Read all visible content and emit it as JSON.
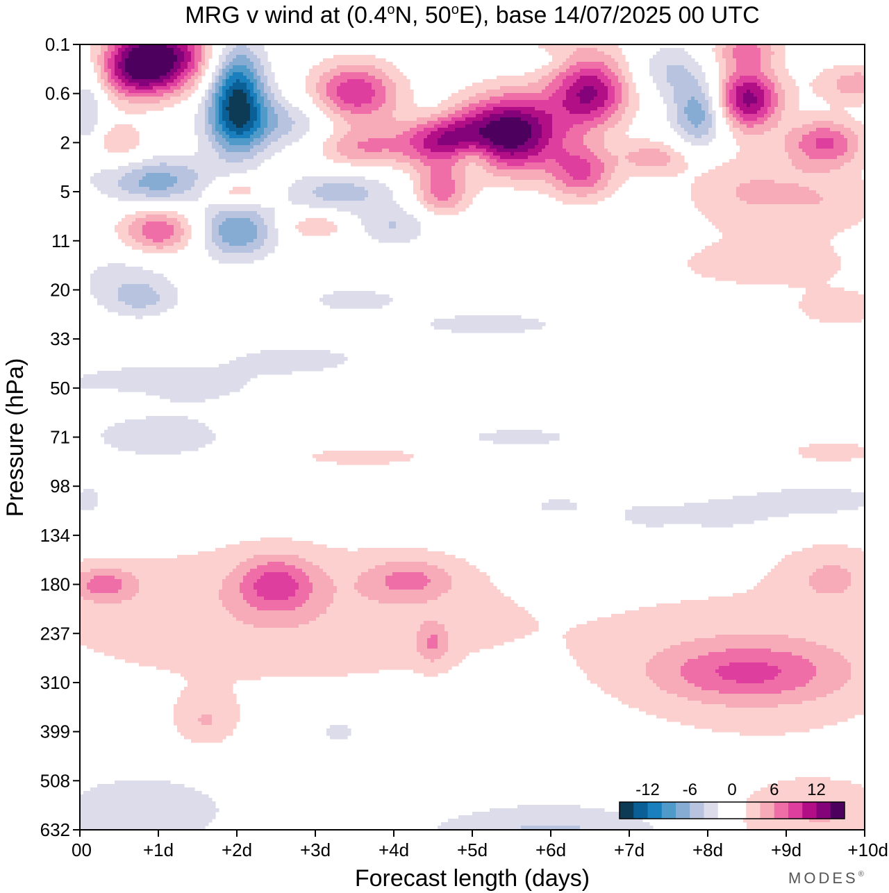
{
  "chart_data": {
    "type": "heatmap",
    "title": "MRG v wind at (0.4°N, 50°E),  base 14/07/2025  00 UTC",
    "title_parts": {
      "t1": "MRG v wind at (0.4",
      "sup1": "o",
      "t2": "N, 50",
      "sup2": "o",
      "t3": "E),  base 14/07/2025  00 UTC"
    },
    "xlabel": "Forecast length (days)",
    "ylabel": "Pressure (hPa)",
    "xlim": [
      0,
      10
    ],
    "y_levels": [
      0.1,
      0.6,
      2,
      5,
      11,
      20,
      33,
      50,
      71,
      98,
      134,
      180,
      237,
      310,
      399,
      508,
      632
    ],
    "x_ticks": [
      {
        "v": 0,
        "label": "00"
      },
      {
        "v": 1,
        "label": "+1d"
      },
      {
        "v": 2,
        "label": "+2d"
      },
      {
        "v": 3,
        "label": "+3d"
      },
      {
        "v": 4,
        "label": "+4d"
      },
      {
        "v": 5,
        "label": "+5d"
      },
      {
        "v": 6,
        "label": "+6d"
      },
      {
        "v": 7,
        "label": "+7d"
      },
      {
        "v": 8,
        "label": "+8d"
      },
      {
        "v": 9,
        "label": "+9d"
      },
      {
        "v": 10,
        "label": "+10d"
      }
    ],
    "y_ticks": [
      {
        "level": 0,
        "label": "0.1"
      },
      {
        "level": 1,
        "label": "0.6"
      },
      {
        "level": 2,
        "label": "2"
      },
      {
        "level": 3,
        "label": "5"
      },
      {
        "level": 4,
        "label": "11"
      },
      {
        "level": 5,
        "label": "20"
      },
      {
        "level": 6,
        "label": "33"
      },
      {
        "level": 7,
        "label": "50"
      },
      {
        "level": 8,
        "label": "71"
      },
      {
        "level": 9,
        "label": "98"
      },
      {
        "level": 10,
        "label": "134"
      },
      {
        "level": 11,
        "label": "180"
      },
      {
        "level": 12,
        "label": "237"
      },
      {
        "level": 13,
        "label": "310"
      },
      {
        "level": 14,
        "label": "399"
      },
      {
        "level": 15,
        "label": "508"
      },
      {
        "level": 16,
        "label": "632"
      }
    ],
    "colorbar": {
      "colors": [
        "#0d3b55",
        "#0a5f96",
        "#1a7fbd",
        "#4f9ac9",
        "#86acd4",
        "#b8c4df",
        "#dcdcea",
        "#ffffff",
        "#ffffff",
        "#fbd0cf",
        "#f7aab8",
        "#f06ea8",
        "#de3e9e",
        "#b20f86",
        "#85037a",
        "#4d005e"
      ],
      "tick_labels": [
        {
          "pos": 2,
          "label": "-12"
        },
        {
          "pos": 5,
          "label": "-6"
        },
        {
          "pos": 8,
          "label": "0"
        },
        {
          "pos": 11,
          "label": "6"
        },
        {
          "pos": 14,
          "label": "12"
        }
      ]
    },
    "features": [
      {
        "name": "strat-pos-core-1",
        "x": 1.0,
        "level": 0.25,
        "v": 15,
        "sx": 0.45,
        "sy": 0.5
      },
      {
        "name": "strat-pos-1b",
        "x": 0.7,
        "level": 0.6,
        "v": 6,
        "sx": 0.3,
        "sy": 0.4
      },
      {
        "name": "strat-neg-core-2",
        "x": 2.0,
        "level": 1.1,
        "v": -14,
        "sx": 0.25,
        "sy": 0.75
      },
      {
        "name": "strat-neg-2b",
        "x": 2.5,
        "level": 1.6,
        "v": -5,
        "sx": 0.6,
        "sy": 0.4
      },
      {
        "name": "strat-neg-2c",
        "x": 1.0,
        "level": 2.8,
        "v": -7,
        "sx": 0.5,
        "sy": 0.35
      },
      {
        "name": "strat-pos-3.5",
        "x": 3.5,
        "level": 1.0,
        "v": 10,
        "sx": 0.4,
        "sy": 0.45
      },
      {
        "name": "strat-pos-3.5b",
        "x": 3.6,
        "level": 2.1,
        "v": 6,
        "sx": 0.45,
        "sy": 0.3
      },
      {
        "name": "strat-pos-4.6",
        "x": 4.6,
        "level": 1.9,
        "v": 11,
        "sx": 0.35,
        "sy": 0.4
      },
      {
        "name": "strat-pos-4.6b",
        "x": 4.6,
        "level": 3.0,
        "v": 7,
        "sx": 0.25,
        "sy": 0.35
      },
      {
        "name": "strat-pos-core-5.5",
        "x": 5.5,
        "level": 1.8,
        "v": 16,
        "sx": 0.45,
        "sy": 0.55
      },
      {
        "name": "strat-pos-6.5",
        "x": 6.5,
        "level": 1.0,
        "v": 12,
        "sx": 0.35,
        "sy": 0.5
      },
      {
        "name": "strat-pos-6.4b",
        "x": 6.4,
        "level": 2.6,
        "v": 8,
        "sx": 0.3,
        "sy": 0.4
      },
      {
        "name": "strat-pos-6.0c",
        "x": 6.0,
        "level": 0.2,
        "v": 4,
        "sx": 0.6,
        "sy": 0.3
      },
      {
        "name": "strat-neg-7.9",
        "x": 7.9,
        "level": 1.4,
        "v": -8,
        "sx": 0.25,
        "sy": 0.5
      },
      {
        "name": "strat-neg-7.5b",
        "x": 7.5,
        "level": 0.5,
        "v": -4,
        "sx": 0.3,
        "sy": 0.4
      },
      {
        "name": "strat-pos-8.5",
        "x": 8.5,
        "level": 1.1,
        "v": 13,
        "sx": 0.3,
        "sy": 0.45
      },
      {
        "name": "strat-pos-9.5",
        "x": 9.5,
        "level": 2.0,
        "v": 8,
        "sx": 0.35,
        "sy": 0.35
      },
      {
        "name": "strat-pos-9.8",
        "x": 9.9,
        "level": 0.8,
        "v": 5,
        "sx": 0.4,
        "sy": 0.3
      },
      {
        "name": "strat-pos-8.5top",
        "x": 8.5,
        "level": 0.1,
        "v": 6,
        "sx": 0.3,
        "sy": 0.25
      },
      {
        "name": "strat-pos-7.3",
        "x": 7.3,
        "level": 2.3,
        "v": 5,
        "sx": 0.3,
        "sy": 0.25
      },
      {
        "name": "strat-pos-0.5",
        "x": 0.5,
        "level": 2.0,
        "v": 4,
        "sx": 0.25,
        "sy": 0.3
      },
      {
        "name": "strat-neg-0.1",
        "x": 0.1,
        "level": 1.3,
        "v": -4,
        "sx": 0.15,
        "sy": 0.7
      },
      {
        "name": "strat-neg-5.6",
        "x": 5.8,
        "level": 0.3,
        "v": -4,
        "sx": 0.5,
        "sy": 0.2
      },
      {
        "name": "strat-neg-3.3",
        "x": 3.3,
        "level": 3.0,
        "v": -5,
        "sx": 0.5,
        "sy": 0.3
      },
      {
        "name": "strat-neg-4.5",
        "x": 4.5,
        "level": 1.5,
        "v": -3,
        "sx": 0.25,
        "sy": 0.3
      },
      {
        "name": "strat-neg-5.0",
        "x": 5.0,
        "level": 2.3,
        "v": -4,
        "sx": 0.2,
        "sy": 0.25
      },
      {
        "name": "strat-pos-8.5low",
        "x": 8.5,
        "level": 3.0,
        "v": 4,
        "sx": 0.6,
        "sy": 0.6
      },
      {
        "name": "strat-pos-9.5low",
        "x": 9.6,
        "level": 3.2,
        "v": 3,
        "sx": 0.5,
        "sy": 0.5
      },
      {
        "name": "mid-pos-1.0",
        "x": 1.0,
        "level": 3.8,
        "v": 8,
        "sx": 0.35,
        "sy": 0.35
      },
      {
        "name": "mid-neg-2.0",
        "x": 2.0,
        "level": 3.8,
        "v": -8,
        "sx": 0.35,
        "sy": 0.4
      },
      {
        "name": "mid-pos-2.0",
        "x": 2.0,
        "level": 3.0,
        "v": 5,
        "sx": 0.3,
        "sy": 0.2
      },
      {
        "name": "mid-pos-3.0",
        "x": 3.0,
        "level": 3.7,
        "v": 4,
        "sx": 0.3,
        "sy": 0.2
      },
      {
        "name": "mid-neg-4.0",
        "x": 4.0,
        "level": 3.7,
        "v": -4,
        "sx": 0.35,
        "sy": 0.3
      },
      {
        "name": "mid-neg-1.2",
        "x": 0.6,
        "level": 4.8,
        "v": -3,
        "sx": 0.5,
        "sy": 0.5
      },
      {
        "name": "mid-pos-8.5",
        "x": 8.7,
        "level": 4.5,
        "v": 3,
        "sx": 1.0,
        "sy": 0.4
      },
      {
        "name": "mid-pos-9.5",
        "x": 9.7,
        "level": 5.4,
        "v": 3,
        "sx": 0.5,
        "sy": 0.3
      },
      {
        "name": "mid-neg-3.5",
        "x": 3.5,
        "level": 5.2,
        "v": -3,
        "sx": 0.5,
        "sy": 0.2
      },
      {
        "name": "mid-neg-0.8",
        "x": 0.8,
        "level": 5.2,
        "v": -3,
        "sx": 0.3,
        "sy": 0.25
      },
      {
        "name": "mid-neg-5.2",
        "x": 5.2,
        "level": 5.7,
        "v": -3,
        "sx": 0.8,
        "sy": 0.2
      },
      {
        "name": "mid-neg-3.0b",
        "x": 2.8,
        "level": 6.4,
        "v": -3,
        "sx": 0.6,
        "sy": 0.2
      },
      {
        "name": "mid-neg-0.8b",
        "x": 1.0,
        "level": 6.9,
        "v": -3,
        "sx": 1.2,
        "sy": 0.35
      },
      {
        "name": "mid-pos-0.4",
        "x": 0.5,
        "level": 7.3,
        "v": 3,
        "sx": 0.3,
        "sy": 0.15
      },
      {
        "name": "mid-neg-1.0c",
        "x": 1.0,
        "level": 8.0,
        "v": -3,
        "sx": 0.8,
        "sy": 0.4
      },
      {
        "name": "mid-neg-5.5c",
        "x": 5.6,
        "level": 8.0,
        "v": -3,
        "sx": 0.6,
        "sy": 0.15
      },
      {
        "name": "mid-pos-3.5c",
        "x": 3.6,
        "level": 8.4,
        "v": 3,
        "sx": 0.7,
        "sy": 0.15
      },
      {
        "name": "mid-pos-9.8c",
        "x": 9.6,
        "level": 8.3,
        "v": 3,
        "sx": 0.5,
        "sy": 0.2
      },
      {
        "name": "mid-neg-9.5d",
        "x": 9.4,
        "level": 9.3,
        "v": -3,
        "sx": 0.8,
        "sy": 0.3
      },
      {
        "name": "mid-neg-7.2d",
        "x": 7.2,
        "level": 9.6,
        "v": -3,
        "sx": 0.3,
        "sy": 0.2
      },
      {
        "name": "mid-neg-8.1d",
        "x": 8.1,
        "level": 9.6,
        "v": -3,
        "sx": 0.5,
        "sy": 0.25
      },
      {
        "name": "mid-neg-6.1d",
        "x": 6.1,
        "level": 9.4,
        "v": -3,
        "sx": 0.3,
        "sy": 0.15
      },
      {
        "name": "mid-neg-0.1d",
        "x": 0.1,
        "level": 9.3,
        "v": -3,
        "sx": 0.2,
        "sy": 0.3
      },
      {
        "name": "tropo-pos-broad",
        "x": 2.5,
        "level": 11.6,
        "v": 3.6,
        "sx": 2.6,
        "sy": 1.2
      },
      {
        "name": "tropo-pos-0.2",
        "x": 0.3,
        "level": 11.0,
        "v": 5,
        "sx": 0.3,
        "sy": 0.25
      },
      {
        "name": "tropo-pos-2.5",
        "x": 2.5,
        "level": 11.0,
        "v": 6.5,
        "sx": 0.35,
        "sy": 0.4
      },
      {
        "name": "tropo-pos-4.2",
        "x": 4.2,
        "level": 10.9,
        "v": 4.5,
        "sx": 0.4,
        "sy": 0.3
      },
      {
        "name": "tropo-pos-4.5b",
        "x": 4.5,
        "level": 12.2,
        "v": 4,
        "sx": 0.15,
        "sy": 0.3
      },
      {
        "name": "tropo-pos-1.6",
        "x": 1.6,
        "level": 13.8,
        "v": 3.5,
        "sx": 0.3,
        "sy": 0.4
      },
      {
        "name": "tropo-pos-right",
        "x": 8.7,
        "level": 12.7,
        "v": 3.6,
        "sx": 1.5,
        "sy": 1.2
      },
      {
        "name": "tropo-pos-right-core",
        "x": 8.5,
        "level": 12.8,
        "v": 5,
        "sx": 0.8,
        "sy": 0.4
      },
      {
        "name": "tropo-pos-9.5",
        "x": 9.6,
        "level": 10.8,
        "v": 3.5,
        "sx": 0.5,
        "sy": 0.5
      },
      {
        "name": "tropo-neg-3.3",
        "x": 3.3,
        "level": 14.0,
        "v": -3,
        "sx": 0.25,
        "sy": 0.25
      },
      {
        "name": "low-neg-1.0",
        "x": 0.8,
        "level": 15.6,
        "v": -3.5,
        "sx": 0.9,
        "sy": 0.6
      },
      {
        "name": "low-neg-6.0",
        "x": 6.0,
        "level": 16.3,
        "v": -5,
        "sx": 1.2,
        "sy": 0.6
      },
      {
        "name": "low-pos-9.0",
        "x": 9.4,
        "level": 15.8,
        "v": 4,
        "sx": 0.9,
        "sy": 0.6
      }
    ]
  },
  "branding": "MODES",
  "branding_mark": "®"
}
